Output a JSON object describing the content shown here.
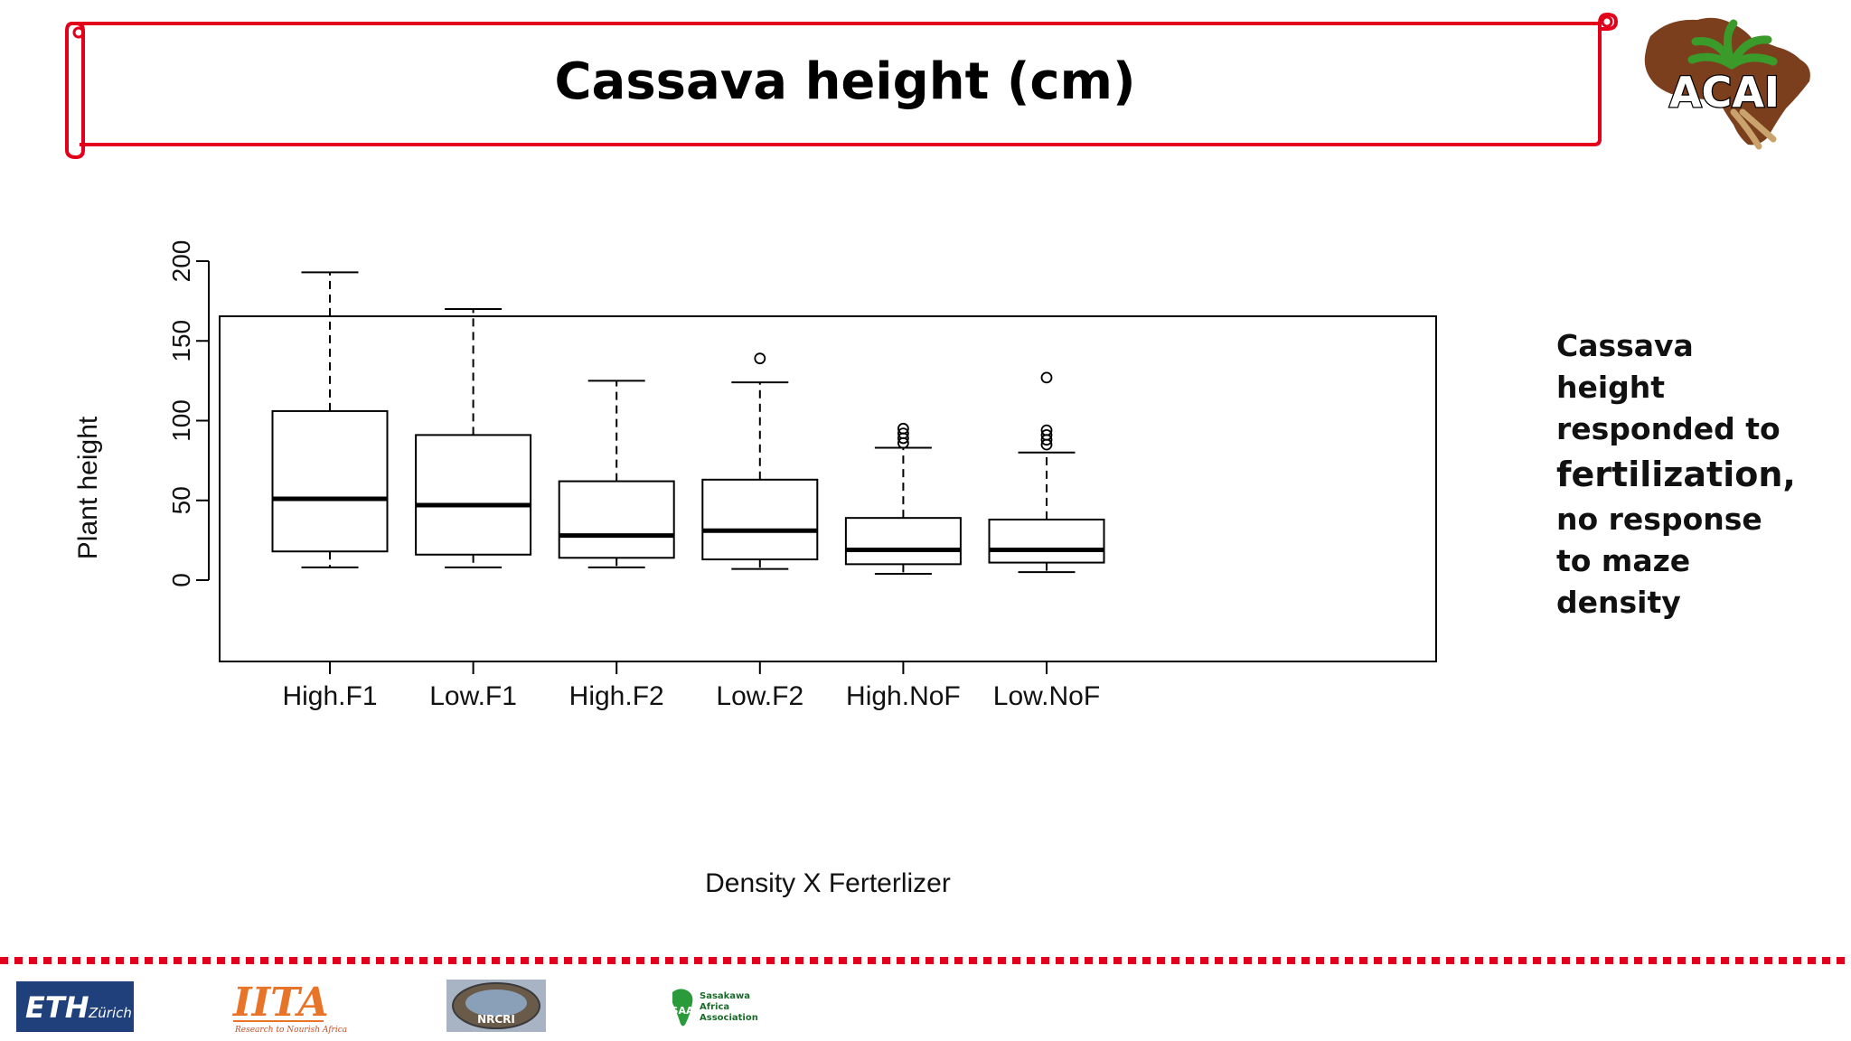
{
  "slide": {
    "title": "Cassava height (cm)",
    "logo_text": "ACAI",
    "side_note": [
      "Cassava",
      "height",
      "responded to",
      "fertilization,",
      "no response",
      "to maze",
      "density"
    ]
  },
  "footer": {
    "eth_logo": {
      "main": "ETH",
      "sub": "Zürich"
    },
    "iita_logo": {
      "main": "IITA",
      "tagline": "Research to Nourish Africa"
    },
    "nrcri_logo": {
      "text": "NRCRI"
    },
    "saa_logo": {
      "mark": "SAA",
      "lines": [
        "Sasakawa",
        "Africa",
        "Association"
      ]
    }
  },
  "colors": {
    "accent": "#e2001a",
    "logo_brown": "#7b3f1e",
    "logo_green": "#3a9a2a",
    "eth_blue": "#1f407a",
    "iita_orange": "#e8742a"
  },
  "chart_data": {
    "type": "box",
    "xlabel": "Density X Ferterlizer",
    "ylabel": "Plant height",
    "ylim": [
      0,
      200
    ],
    "yticks": [
      0,
      50,
      100,
      150,
      200
    ],
    "categories": [
      "High.F1",
      "Low.F1",
      "High.F2",
      "Low.F2",
      "High.NoF",
      "Low.NoF"
    ],
    "boxes": [
      {
        "name": "High.F1",
        "whisker_low": 8,
        "q1": 18,
        "median": 51,
        "q3": 106,
        "whisker_high": 193,
        "outliers": []
      },
      {
        "name": "Low.F1",
        "whisker_low": 8,
        "q1": 16,
        "median": 47,
        "q3": 91,
        "whisker_high": 170,
        "outliers": []
      },
      {
        "name": "High.F2",
        "whisker_low": 8,
        "q1": 14,
        "median": 28,
        "q3": 62,
        "whisker_high": 125,
        "outliers": []
      },
      {
        "name": "Low.F2",
        "whisker_low": 7,
        "q1": 13,
        "median": 31,
        "q3": 63,
        "whisker_high": 124,
        "outliers": [
          139
        ]
      },
      {
        "name": "High.NoF",
        "whisker_low": 4,
        "q1": 10,
        "median": 19,
        "q3": 39,
        "whisker_high": 83,
        "outliers": [
          86,
          89,
          92,
          95
        ]
      },
      {
        "name": "Low.NoF",
        "whisker_low": 5,
        "q1": 11,
        "median": 19,
        "q3": 38,
        "whisker_high": 80,
        "outliers": [
          85,
          88,
          91,
          94,
          127
        ]
      }
    ]
  }
}
